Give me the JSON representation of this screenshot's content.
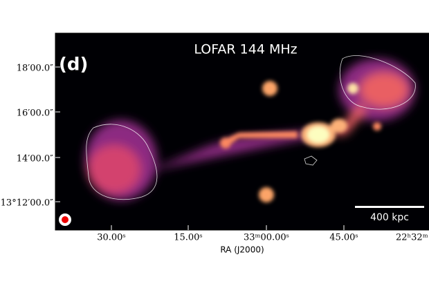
{
  "panel_label": "(d)",
  "title": "LOFAR 144 MHz",
  "scale_bar": "400 kpc",
  "x_axis": {
    "label": "RA (J2000)",
    "ticks": [
      "30.00ˢ",
      "15.00ˢ",
      "33ᵐ00.00ˢ",
      "45.00ˢ",
      "22ʰ32ᵐ"
    ]
  },
  "y_axis": {
    "ticks": [
      "18′00.0″",
      "16′00.0″",
      "14′00.0″",
      "13°12′00.0″"
    ]
  }
}
